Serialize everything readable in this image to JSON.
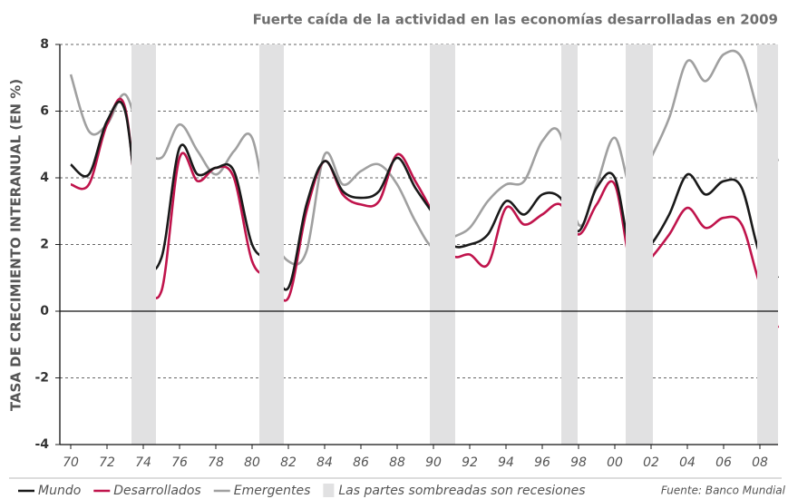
{
  "chart_data": {
    "type": "line",
    "title": "Fuerte caída de la actividad en las economías desarrolladas en 2009",
    "y_label": "TASA DE CRECIMIENTO INTERANUAL (EN %)",
    "x": [
      1970,
      1971,
      1972,
      1973,
      1974,
      1975,
      1976,
      1977,
      1978,
      1979,
      1980,
      1981,
      1982,
      1983,
      1984,
      1985,
      1986,
      1987,
      1988,
      1989,
      1990,
      1991,
      1992,
      1993,
      1994,
      1995,
      1996,
      1997,
      1998,
      1999,
      2000,
      2001,
      2002,
      2003,
      2004,
      2005,
      2006,
      2007,
      2008,
      2009
    ],
    "series": [
      {
        "name": "Mundo",
        "color": "#1a1a1a",
        "values": [
          4.4,
          4.1,
          5.7,
          6.0,
          1.8,
          1.6,
          4.9,
          4.1,
          4.3,
          4.2,
          2.0,
          1.5,
          0.7,
          3.2,
          4.5,
          3.6,
          3.4,
          3.6,
          4.6,
          3.7,
          2.9,
          2.0,
          2.0,
          2.3,
          3.3,
          2.9,
          3.5,
          3.4,
          2.4,
          3.7,
          4.0,
          1.5,
          2.0,
          2.9,
          4.1,
          3.5,
          3.9,
          3.7,
          1.7,
          1.0
        ]
      },
      {
        "name": "Desarrollados",
        "color": "#c0144c",
        "values": [
          3.8,
          3.8,
          5.6,
          6.1,
          1.5,
          0.6,
          4.6,
          3.9,
          4.3,
          4.0,
          1.5,
          1.0,
          0.4,
          3.0,
          4.5,
          3.5,
          3.2,
          3.3,
          4.7,
          3.9,
          2.9,
          1.7,
          1.7,
          1.4,
          3.1,
          2.6,
          2.9,
          3.2,
          2.3,
          3.2,
          3.8,
          1.1,
          1.6,
          2.3,
          3.1,
          2.5,
          2.8,
          2.6,
          0.8,
          -0.5
        ]
      },
      {
        "name": "Emergentes",
        "color": "#a0a0a0",
        "values": [
          7.1,
          5.4,
          5.6,
          6.5,
          5.0,
          4.6,
          5.6,
          4.8,
          4.1,
          4.8,
          5.2,
          2.5,
          1.5,
          1.8,
          4.7,
          3.8,
          4.2,
          4.4,
          3.8,
          2.7,
          1.9,
          2.2,
          2.5,
          3.3,
          3.8,
          3.9,
          5.1,
          5.3,
          2.6,
          3.8,
          5.2,
          3.5,
          4.6,
          5.8,
          7.5,
          6.9,
          7.7,
          7.6,
          5.8,
          4.5
        ]
      }
    ],
    "recessions": [
      [
        1973.35,
        1974.7
      ],
      [
        1980.4,
        1981.75
      ],
      [
        1989.8,
        1991.2
      ],
      [
        1997.05,
        1997.95
      ],
      [
        2000.6,
        2002.1
      ],
      [
        2007.85,
        2009.0
      ]
    ],
    "recession_color": "#e1e1e2",
    "recession_note": "Las partes sombreadas son recesiones",
    "source": "Fuente:  Banco Mundial",
    "xlim": [
      1969.4,
      2009.0
    ],
    "xticks": [
      {
        "value": 1970,
        "label": "70"
      },
      {
        "value": 1972,
        "label": "72"
      },
      {
        "value": 1974,
        "label": "74"
      },
      {
        "value": 1976,
        "label": "76"
      },
      {
        "value": 1978,
        "label": "78"
      },
      {
        "value": 1980,
        "label": "80"
      },
      {
        "value": 1982,
        "label": "82"
      },
      {
        "value": 1984,
        "label": "84"
      },
      {
        "value": 1986,
        "label": "86"
      },
      {
        "value": 1988,
        "label": "88"
      },
      {
        "value": 1990,
        "label": "90"
      },
      {
        "value": 1992,
        "label": "92"
      },
      {
        "value": 1994,
        "label": "94"
      },
      {
        "value": 1996,
        "label": "96"
      },
      {
        "value": 1998,
        "label": "98"
      },
      {
        "value": 2000,
        "label": "00"
      },
      {
        "value": 2002,
        "label": "02"
      },
      {
        "value": 2004,
        "label": "04"
      },
      {
        "value": 2006,
        "label": "06"
      },
      {
        "value": 2008,
        "label": "08"
      }
    ],
    "ylim": [
      -4,
      8
    ],
    "yticks": [
      -4,
      -2,
      0,
      2,
      4,
      6,
      8
    ],
    "grid": true
  }
}
